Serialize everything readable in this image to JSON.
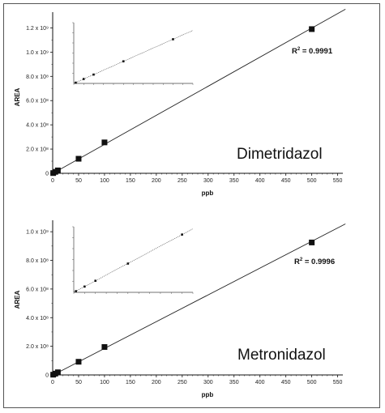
{
  "chart_data": [
    {
      "type": "scatter",
      "name_label": "Dimetridazol",
      "r2_prefix": "R",
      "r2_sup": "2",
      "r2_value": " = 0.9991",
      "xlabel": "ppb",
      "ylabel": "AREA",
      "xlim": [
        0,
        560
      ],
      "ylim": [
        0,
        1330000000.0
      ],
      "x_ticks": [
        0,
        50,
        100,
        150,
        200,
        250,
        300,
        350,
        400,
        450,
        500,
        550
      ],
      "x_tick_labels": [
        "0",
        "50",
        "100",
        "150",
        "200",
        "250",
        "300",
        "350",
        "400",
        "450",
        "500",
        "550"
      ],
      "y_ticks": [
        0,
        200000000.0,
        400000000.0,
        600000000.0,
        800000000.0,
        1000000000.0,
        1200000000.0
      ],
      "y_tick_labels": [
        "0",
        "2.0 x 10⁸",
        "4.0 x 10⁸",
        "6.0 x 10⁸",
        "8.0 x 10⁸",
        "1.0 x 10⁹",
        "1.2 x 10⁹"
      ],
      "points": [
        {
          "x": 1,
          "y": 2000000.0
        },
        {
          "x": 5,
          "y": 12000000.0
        },
        {
          "x": 10,
          "y": 24000000.0
        },
        {
          "x": 50,
          "y": 120000000.0
        },
        {
          "x": 100,
          "y": 255000000.0
        },
        {
          "x": 500,
          "y": 1190000000.0
        }
      ],
      "fit": {
        "slope": 2400000.0,
        "intercept": -1500000.0,
        "x_range": [
          0,
          565
        ]
      },
      "inset": {
        "xlim": [
          0,
          12
        ],
        "ylim": [
          0,
          33000000.0
        ],
        "points": [
          {
            "x": 0.2,
            "y": 400000.0
          },
          {
            "x": 1,
            "y": 2400000.0
          },
          {
            "x": 2,
            "y": 4800000.0
          },
          {
            "x": 5,
            "y": 12000000.0
          },
          {
            "x": 10,
            "y": 24000000.0
          }
        ],
        "fit": {
          "slope": 2400000.0,
          "intercept": 0,
          "x_range": [
            0,
            12
          ]
        }
      }
    },
    {
      "type": "scatter",
      "name_label": "Metronidazol",
      "r2_prefix": "R",
      "r2_sup": "2",
      "r2_value": " = 0.9996",
      "xlabel": "ppb",
      "ylabel": "AREA",
      "xlim": [
        0,
        560
      ],
      "ylim": [
        0,
        1080000000.0
      ],
      "x_ticks": [
        0,
        50,
        100,
        150,
        200,
        250,
        300,
        350,
        400,
        450,
        500,
        550
      ],
      "x_tick_labels": [
        "0",
        "50",
        "100",
        "150",
        "200",
        "250",
        "300",
        "350",
        "400",
        "450",
        "500",
        "550"
      ],
      "y_ticks": [
        0,
        200000000.0,
        400000000.0,
        600000000.0,
        800000000.0,
        1000000000.0
      ],
      "y_tick_labels": [
        "0",
        "2.0 x 10⁸",
        "4.0 x 10⁸",
        "6.0 x 10⁸",
        "8.0 x 10⁸",
        "1.0 x 10⁹"
      ],
      "points": [
        {
          "x": 1,
          "y": 1800000.0
        },
        {
          "x": 5,
          "y": 9200000.0
        },
        {
          "x": 10,
          "y": 18500000.0
        },
        {
          "x": 50,
          "y": 92000000.0
        },
        {
          "x": 100,
          "y": 195000000.0
        },
        {
          "x": 500,
          "y": 925000000.0
        }
      ],
      "fit": {
        "slope": 1870000.0,
        "intercept": -2000000.0,
        "x_range": [
          0,
          565
        ]
      },
      "inset": {
        "xlim": [
          0,
          11
        ],
        "ylim": [
          0,
          21000000.0
        ],
        "points": [
          {
            "x": 0.2,
            "y": 370000.0
          },
          {
            "x": 1,
            "y": 1850000.0
          },
          {
            "x": 2,
            "y": 3700000.0
          },
          {
            "x": 5,
            "y": 9200000.0
          },
          {
            "x": 10,
            "y": 18500000.0
          }
        ],
        "fit": {
          "slope": 1850000.0,
          "intercept": 0,
          "x_range": [
            0,
            11
          ]
        }
      }
    }
  ]
}
